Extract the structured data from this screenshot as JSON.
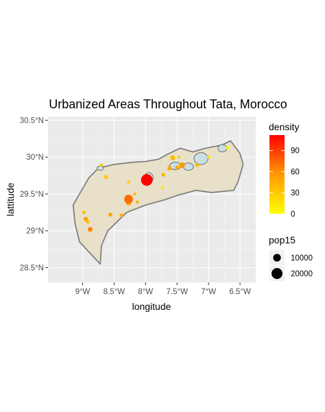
{
  "chart_data": {
    "type": "scatter",
    "title": "Urbanized Areas Throughout Tata, Morocco",
    "xlabel": "longitude",
    "ylabel": "lattitude",
    "x_ticks": [
      {
        "value": -9.0,
        "label": "9°W"
      },
      {
        "value": -8.5,
        "label": "8.5°W"
      },
      {
        "value": -8.0,
        "label": "8°W"
      },
      {
        "value": -7.5,
        "label": "7.5°W"
      },
      {
        "value": -7.0,
        "label": "7°W"
      },
      {
        "value": -6.5,
        "label": "6.5°W"
      }
    ],
    "y_ticks": [
      {
        "value": 28.5,
        "label": "28.5°N"
      },
      {
        "value": 29.0,
        "label": "29°N"
      },
      {
        "value": 29.5,
        "label": "29.5°N"
      },
      {
        "value": 30.0,
        "label": "30°N"
      },
      {
        "value": 30.5,
        "label": "30.5°N"
      }
    ],
    "xlim": [
      -9.55,
      -6.25
    ],
    "ylim": [
      28.3,
      30.55
    ],
    "grid": true,
    "colors": {
      "panel": "#ebebeb",
      "grid_major": "#ffffff",
      "region_fill": "#e8e0c8",
      "region_border": "#808080",
      "urban_fill": "#c9dfe3",
      "density_low": "#ffff00",
      "density_high": "#ff0000"
    },
    "region_outline": [
      [
        -9.05,
        28.85
      ],
      [
        -8.72,
        28.55
      ],
      [
        -8.7,
        28.8
      ],
      [
        -8.6,
        29.0
      ],
      [
        -8.3,
        29.25
      ],
      [
        -8.0,
        29.35
      ],
      [
        -7.7,
        29.42
      ],
      [
        -7.5,
        29.48
      ],
      [
        -7.2,
        29.55
      ],
      [
        -6.95,
        29.52
      ],
      [
        -6.6,
        29.55
      ],
      [
        -6.53,
        29.67
      ],
      [
        -6.45,
        29.9
      ],
      [
        -6.5,
        30.05
      ],
      [
        -6.65,
        30.22
      ],
      [
        -6.8,
        30.16
      ],
      [
        -7.05,
        30.12
      ],
      [
        -7.25,
        30.07
      ],
      [
        -7.45,
        30.12
      ],
      [
        -7.65,
        30.04
      ],
      [
        -7.8,
        29.97
      ],
      [
        -8.0,
        29.94
      ],
      [
        -8.2,
        29.93
      ],
      [
        -8.5,
        29.9
      ],
      [
        -8.75,
        29.85
      ],
      [
        -8.9,
        29.72
      ],
      [
        -9.05,
        29.5
      ],
      [
        -9.15,
        29.35
      ],
      [
        -9.12,
        29.1
      ]
    ],
    "urban_patches": [
      {
        "lon": -7.95,
        "lat": 29.72,
        "rx": 0.07,
        "ry": 0.07
      },
      {
        "lon": -7.53,
        "lat": 29.88,
        "rx": 0.09,
        "ry": 0.05
      },
      {
        "lon": -7.32,
        "lat": 29.87,
        "rx": 0.08,
        "ry": 0.05
      },
      {
        "lon": -7.12,
        "lat": 29.98,
        "rx": 0.11,
        "ry": 0.08
      },
      {
        "lon": -6.78,
        "lat": 30.12,
        "rx": 0.07,
        "ry": 0.05
      },
      {
        "lon": -8.72,
        "lat": 29.85,
        "rx": 0.05,
        "ry": 0.03
      }
    ],
    "legend": {
      "density": {
        "title": "density",
        "min": 0,
        "max": 112,
        "breaks": [
          0,
          30,
          60,
          90
        ],
        "labels": [
          "0",
          "30",
          "60",
          "90"
        ]
      },
      "size": {
        "title": "pop15",
        "breaks": [
          10000,
          20000
        ],
        "labels": [
          "10000",
          "20000"
        ],
        "max_pop": 25000
      }
    },
    "points": [
      {
        "lon": -7.98,
        "lat": 29.69,
        "pop15": 25000,
        "density": 112
      },
      {
        "lon": -8.27,
        "lat": 29.43,
        "pop15": 14000,
        "density": 65
      },
      {
        "lon": -8.27,
        "lat": 29.38,
        "pop15": 5000,
        "density": 45
      },
      {
        "lon": -7.42,
        "lat": 29.89,
        "pop15": 6000,
        "density": 45
      },
      {
        "lon": -7.57,
        "lat": 29.99,
        "pop15": 4500,
        "density": 30
      },
      {
        "lon": -7.62,
        "lat": 29.85,
        "pop15": 3500,
        "density": 40
      },
      {
        "lon": -7.5,
        "lat": 29.86,
        "pop15": 3000,
        "density": 35
      },
      {
        "lon": -7.18,
        "lat": 29.89,
        "pop15": 2500,
        "density": 30
      },
      {
        "lon": -7.0,
        "lat": 30.0,
        "pop15": 2000,
        "density": 15
      },
      {
        "lon": -6.7,
        "lat": 30.13,
        "pop15": 2000,
        "density": 5
      },
      {
        "lon": -7.72,
        "lat": 29.76,
        "pop15": 2500,
        "density": 35
      },
      {
        "lon": -7.73,
        "lat": 29.59,
        "pop15": 1800,
        "density": 10
      },
      {
        "lon": -8.63,
        "lat": 29.73,
        "pop15": 3000,
        "density": 25
      },
      {
        "lon": -8.7,
        "lat": 29.89,
        "pop15": 2000,
        "density": 25
      },
      {
        "lon": -8.27,
        "lat": 29.66,
        "pop15": 1500,
        "density": 20
      },
      {
        "lon": -8.56,
        "lat": 29.22,
        "pop15": 3000,
        "density": 40
      },
      {
        "lon": -8.38,
        "lat": 29.21,
        "pop15": 2500,
        "density": 35
      },
      {
        "lon": -8.95,
        "lat": 29.16,
        "pop15": 3500,
        "density": 40
      },
      {
        "lon": -8.98,
        "lat": 29.25,
        "pop15": 2000,
        "density": 30
      },
      {
        "lon": -8.92,
        "lat": 29.12,
        "pop15": 2000,
        "density": 30
      },
      {
        "lon": -8.88,
        "lat": 29.02,
        "pop15": 4000,
        "density": 55
      },
      {
        "lon": -8.17,
        "lat": 29.5,
        "pop15": 1500,
        "density": 30
      },
      {
        "lon": -8.13,
        "lat": 29.39,
        "pop15": 1500,
        "density": 35
      },
      {
        "lon": -7.47,
        "lat": 30.0,
        "pop15": 1500,
        "density": 20
      }
    ]
  }
}
